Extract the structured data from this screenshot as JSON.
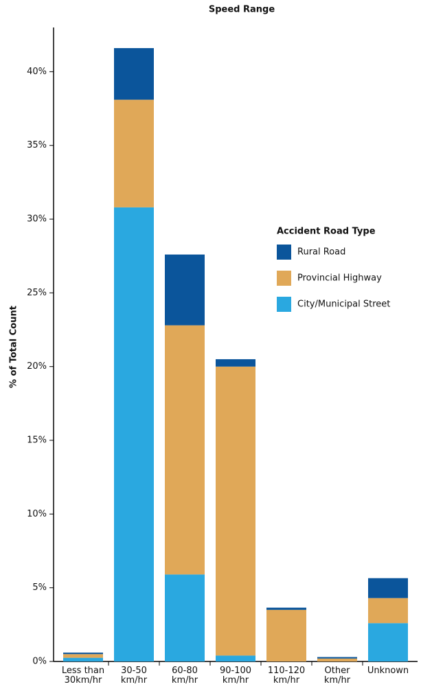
{
  "chart_data": {
    "type": "stacked-bar",
    "title": "Speed Range",
    "ylabel": "% of Total Count",
    "categories": [
      "Less than 30km/hr",
      "30-50 km/hr",
      "60-80 km/hr",
      "90-100 km/hr",
      "110-120 km/hr",
      "Other km/hr",
      "Unknown"
    ],
    "legend_title": "Accident Road Type",
    "series": [
      {
        "name": "City/Municipal Street",
        "color": "#2aa8e0",
        "values": [
          0.25,
          30.8,
          5.9,
          0.4,
          0,
          0,
          2.6
        ]
      },
      {
        "name": "Provincial Highway",
        "color": "#e0a858",
        "values": [
          0.25,
          7.3,
          16.9,
          19.6,
          3.5,
          0.2,
          1.7
        ]
      },
      {
        "name": "Rural Road",
        "color": "#0b559b",
        "values": [
          0.1,
          3.5,
          4.8,
          0.5,
          0.15,
          0.1,
          1.35
        ]
      }
    ],
    "ylim": [
      0,
      43
    ],
    "yticks": [
      {
        "value": 0,
        "label": "0%"
      },
      {
        "value": 5,
        "label": "5%"
      },
      {
        "value": 10,
        "label": "10%"
      },
      {
        "value": 15,
        "label": "15%"
      },
      {
        "value": 20,
        "label": "20%"
      },
      {
        "value": 25,
        "label": "25%"
      },
      {
        "value": 30,
        "label": "30%"
      },
      {
        "value": 35,
        "label": "35%"
      },
      {
        "value": 40,
        "label": "40%"
      }
    ]
  }
}
